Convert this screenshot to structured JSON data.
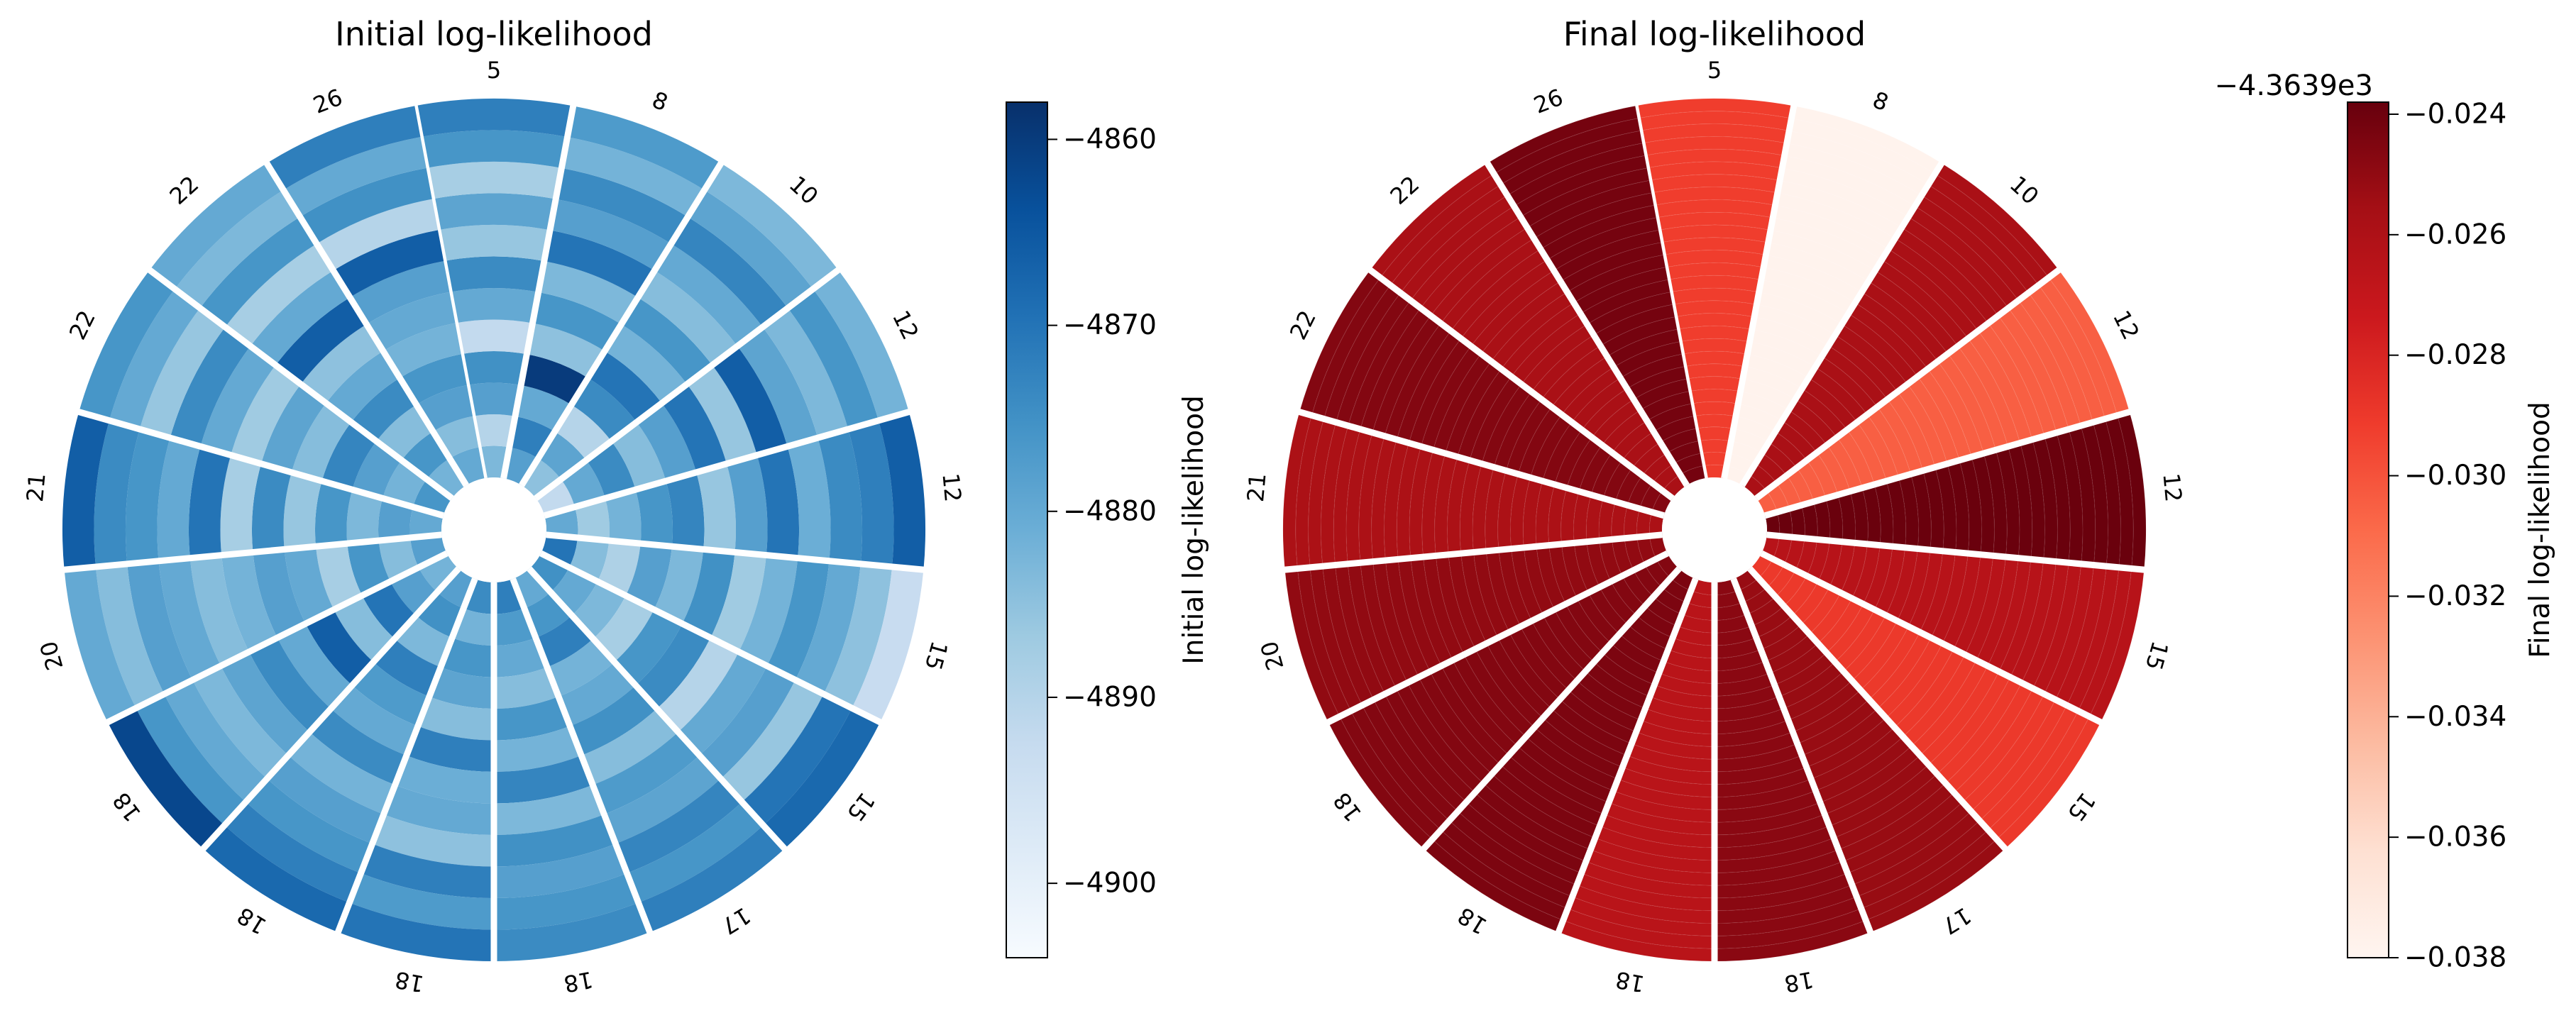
{
  "chart_data": [
    {
      "type": "heatmap",
      "layout": "polar-sector",
      "title": "Initial log-likelihood",
      "colormap": "Blues",
      "sector_labels": [
        "5",
        "8",
        "10",
        "12",
        "12",
        "15",
        "15",
        "17",
        "18",
        "18",
        "18",
        "18",
        "20",
        "21",
        "22",
        "22",
        "26"
      ],
      "colorbar": {
        "label": "Initial log-likelihood",
        "range": [
          -4904,
          -4858
        ],
        "ticks": [
          -4860,
          -4870,
          -4880,
          -4890,
          -4900
        ],
        "tick_labels": [
          "−4860",
          "−4870",
          "−4880",
          "−4890",
          "−4900"
        ]
      },
      "rings_per_sector_note": "cell values vary per ring; read approximately from colour",
      "values": [
        [
          -4883,
          -4890,
          -4878,
          -4875,
          -4892,
          -4880,
          -4874,
          -4886,
          -4879,
          -4888,
          -4876,
          -4872
        ],
        [
          -4878,
          -4872,
          -4880,
          -4860,
          -4885,
          -4876,
          -4883,
          -4870,
          -4878,
          -4874,
          -4882,
          -4877
        ],
        [
          -4885,
          -4879,
          -4890,
          -4874,
          -4870,
          -4882,
          -4876,
          -4884,
          -4880,
          -4873,
          -4879,
          -4883
        ],
        [
          -4892,
          -4880,
          -4874,
          -4884,
          -4878,
          -4870,
          -4886,
          -4866,
          -4879,
          -4883,
          -4876,
          -4882
        ],
        [
          -4880,
          -4887,
          -4882,
          -4876,
          -4873,
          -4886,
          -4878,
          -4870,
          -4881,
          -4874,
          -4872,
          -4866
        ],
        [
          -4870,
          -4884,
          -4889,
          -4878,
          -4883,
          -4875,
          -4887,
          -4882,
          -4876,
          -4880,
          -4885,
          -4893
        ],
        [
          -4875,
          -4880,
          -4883,
          -4888,
          -4876,
          -4874,
          -4890,
          -4880,
          -4878,
          -4886,
          -4870,
          -4868
        ],
        [
          -4880,
          -4876,
          -4872,
          -4882,
          -4880,
          -4875,
          -4884,
          -4877,
          -4879,
          -4873,
          -4876,
          -4872
        ],
        [
          -4872,
          -4877,
          -4880,
          -4884,
          -4876,
          -4882,
          -4873,
          -4883,
          -4875,
          -4878,
          -4876,
          -4874
        ],
        [
          -4874,
          -4882,
          -4876,
          -4879,
          -4884,
          -4872,
          -4881,
          -4880,
          -4885,
          -4872,
          -4877,
          -4870
        ],
        [
          -4878,
          -4875,
          -4883,
          -4872,
          -4877,
          -4880,
          -4874,
          -4882,
          -4878,
          -4876,
          -4872,
          -4868
        ],
        [
          -4882,
          -4878,
          -4870,
          -4884,
          -4866,
          -4880,
          -4874,
          -4879,
          -4883,
          -4880,
          -4876,
          -4862
        ],
        [
          -4878,
          -4884,
          -4876,
          -4888,
          -4880,
          -4878,
          -4882,
          -4884,
          -4880,
          -4878,
          -4884,
          -4880
        ],
        [
          -4880,
          -4878,
          -4883,
          -4876,
          -4886,
          -4874,
          -4888,
          -4870,
          -4880,
          -4876,
          -4874,
          -4866
        ],
        [
          -4876,
          -4882,
          -4878,
          -4873,
          -4884,
          -4879,
          -4887,
          -4880,
          -4874,
          -4886,
          -4880,
          -4876
        ],
        [
          -4882,
          -4876,
          -4884,
          -4874,
          -4880,
          -4885,
          -4866,
          -4880,
          -4888,
          -4876,
          -4883,
          -4880
        ],
        [
          -4880,
          -4884,
          -4878,
          -4876,
          -4882,
          -4880,
          -4878,
          -4866,
          -4890,
          -4875,
          -4880,
          -4872
        ]
      ]
    },
    {
      "type": "heatmap",
      "layout": "polar-sector",
      "title": "Final log-likelihood",
      "colormap": "Reds",
      "sector_labels": [
        "5",
        "8",
        "10",
        "12",
        "12",
        "15",
        "15",
        "17",
        "18",
        "18",
        "18",
        "18",
        "20",
        "21",
        "22",
        "22",
        "26"
      ],
      "colorbar": {
        "label": "Final log-likelihood",
        "offset_text": "−4.3639e3",
        "range": [
          -0.038,
          -0.0238
        ],
        "ticks": [
          -0.024,
          -0.026,
          -0.028,
          -0.03,
          -0.032,
          -0.034,
          -0.036,
          -0.038
        ],
        "tick_labels": [
          "−0.024",
          "−0.026",
          "−0.028",
          "−0.030",
          "−0.032",
          "−0.034",
          "−0.036",
          "−0.038"
        ]
      },
      "values": [
        -0.0292,
        -0.0378,
        -0.0258,
        -0.0305,
        -0.0239,
        -0.0264,
        -0.029,
        -0.0252,
        -0.0248,
        -0.0265,
        -0.0244,
        -0.0246,
        -0.025,
        -0.0259,
        -0.0246,
        -0.0258,
        -0.0242
      ]
    }
  ]
}
